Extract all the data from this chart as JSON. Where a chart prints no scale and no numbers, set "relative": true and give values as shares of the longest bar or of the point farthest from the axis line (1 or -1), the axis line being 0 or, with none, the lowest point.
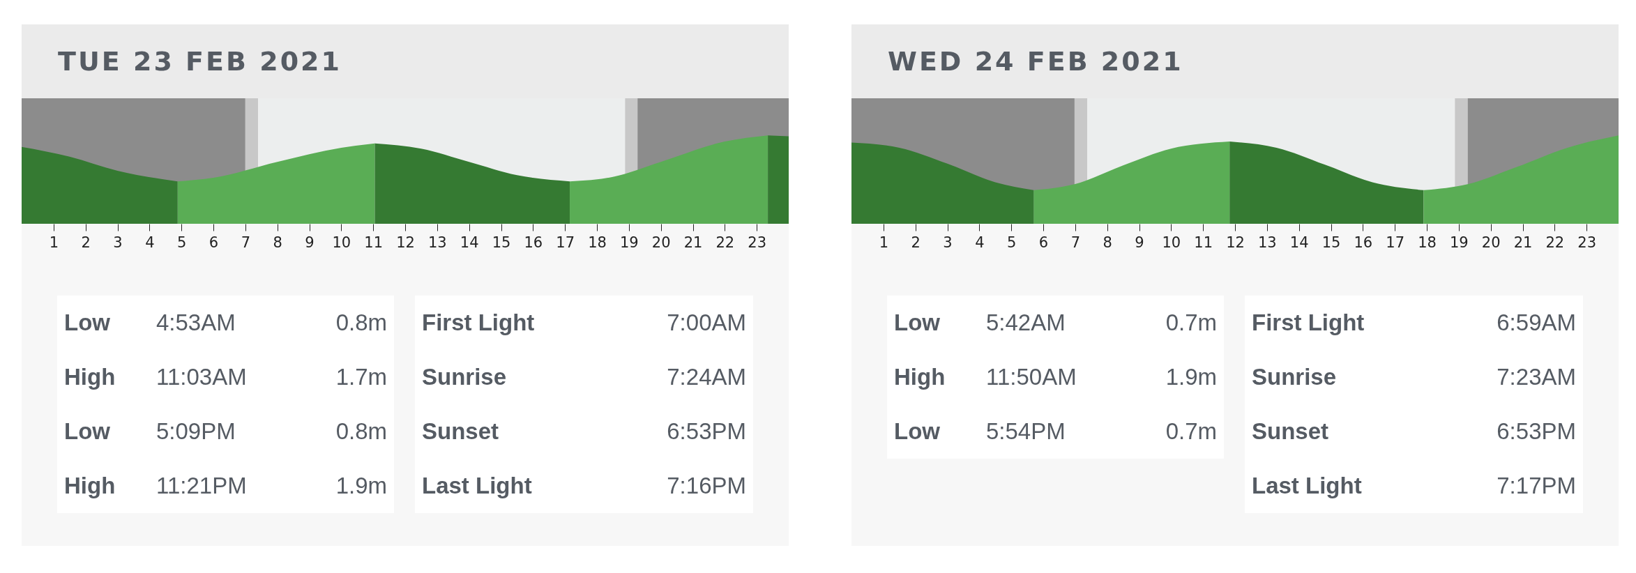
{
  "chart_data": [
    {
      "type": "area",
      "title": "TUE 23 FEB 2021",
      "relative": true,
      "xlim": [
        0,
        24
      ],
      "xticks": [
        1,
        2,
        3,
        4,
        5,
        6,
        7,
        8,
        9,
        10,
        11,
        12,
        13,
        14,
        15,
        16,
        17,
        18,
        19,
        20,
        21,
        22,
        23
      ],
      "tick_labels": "x",
      "series": [
        {
          "color": "#357a32",
          "x": [
            0,
            1.5,
            3,
            4.88
          ],
          "values": [
            0.87,
            0.76,
            0.6,
            0.48
          ]
        },
        {
          "color": "#5aad55",
          "x": [
            4.88,
            6,
            8,
            10,
            11.05
          ],
          "values": [
            0.48,
            0.52,
            0.7,
            0.86,
            0.91
          ]
        },
        {
          "color": "#357a32",
          "x": [
            11.05,
            12.5,
            14,
            15.5,
            17.15
          ],
          "values": [
            0.91,
            0.85,
            0.7,
            0.55,
            0.48
          ]
        },
        {
          "color": "#5aad55",
          "x": [
            17.15,
            18.5,
            20,
            22,
            23.35
          ],
          "values": [
            0.48,
            0.53,
            0.7,
            0.93,
            1.0
          ]
        },
        {
          "color": "#357a32",
          "x": [
            23.35,
            24
          ],
          "values": [
            1.0,
            0.99
          ]
        }
      ],
      "bands": [
        {
          "axis": "x",
          "from": 0,
          "to": 7.0,
          "color": "#8c8c8c"
        },
        {
          "axis": "x",
          "from": 7.0,
          "to": 7.4,
          "color": "#c8c8c8"
        },
        {
          "axis": "x",
          "from": 7.4,
          "to": 18.88,
          "color": "#eceeee"
        },
        {
          "axis": "x",
          "from": 18.88,
          "to": 19.27,
          "color": "#c8c8c8"
        },
        {
          "axis": "x",
          "from": 19.27,
          "to": 24,
          "color": "#8c8c8c"
        }
      ],
      "annotations": [
        "Low",
        "4:53AM",
        "0.8m",
        "High",
        "11:03AM",
        "1.7m",
        "Low",
        "5:09PM",
        "0.8m",
        "High",
        "11:21PM",
        "1.9m"
      ]
    },
    {
      "type": "other",
      "annotations": [
        "First Light",
        "7:00AM",
        "Sunrise",
        "7:24AM",
        "Sunset",
        "6:53PM",
        "Last Light",
        "7:16PM"
      ]
    },
    {
      "type": "area",
      "title": "WED 24 FEB 2021",
      "relative": true,
      "xlim": [
        0,
        24
      ],
      "xticks": [
        1,
        2,
        3,
        4,
        5,
        6,
        7,
        8,
        9,
        10,
        11,
        12,
        13,
        14,
        15,
        16,
        17,
        18,
        19,
        20,
        21,
        22,
        23
      ],
      "tick_labels": "x",
      "series": [
        {
          "color": "#357a32",
          "x": [
            0,
            1.5,
            3,
            4.5,
            5.7
          ],
          "values": [
            0.92,
            0.86,
            0.68,
            0.47,
            0.38
          ]
        },
        {
          "color": "#5aad55",
          "x": [
            5.7,
            7,
            8.5,
            10,
            11.83
          ],
          "values": [
            0.38,
            0.45,
            0.66,
            0.85,
            0.93
          ]
        },
        {
          "color": "#357a32",
          "x": [
            11.83,
            13.3,
            14.8,
            16.3,
            17.9
          ],
          "values": [
            0.93,
            0.86,
            0.67,
            0.47,
            0.38
          ]
        },
        {
          "color": "#5aad55",
          "x": [
            17.9,
            19.3,
            20.8,
            22.4,
            24
          ],
          "values": [
            0.38,
            0.45,
            0.64,
            0.86,
            1.0
          ]
        }
      ],
      "bands": [
        {
          "axis": "x",
          "from": 0,
          "to": 6.98,
          "color": "#8c8c8c"
        },
        {
          "axis": "x",
          "from": 6.98,
          "to": 7.38,
          "color": "#c8c8c8"
        },
        {
          "axis": "x",
          "from": 7.38,
          "to": 18.88,
          "color": "#eceeee"
        },
        {
          "axis": "x",
          "from": 18.88,
          "to": 19.28,
          "color": "#c8c8c8"
        },
        {
          "axis": "x",
          "from": 19.28,
          "to": 24,
          "color": "#8c8c8c"
        }
      ],
      "annotations": [
        "Low",
        "5:42AM",
        "0.7m",
        "High",
        "11:50AM",
        "1.9m",
        "Low",
        "5:54PM",
        "0.7m"
      ]
    },
    {
      "type": "other",
      "annotations": [
        "First Light",
        "6:59AM",
        "Sunrise",
        "7:23AM",
        "Sunset",
        "6:53PM",
        "Last Light",
        "7:17PM"
      ]
    }
  ]
}
